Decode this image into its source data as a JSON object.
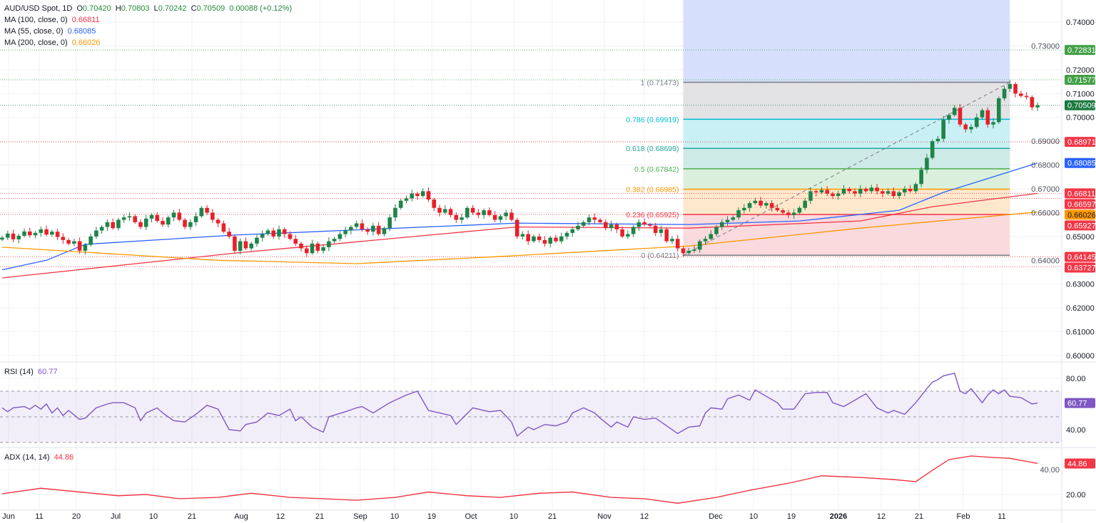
{
  "header": {
    "symbol": "AUD/USD Spot, 1D",
    "o_label": "O",
    "open": "0.70420",
    "h_label": "H",
    "high": "0.70803",
    "l_label": "L",
    "low": "0.70242",
    "c_label": "C",
    "close": "0.70509",
    "change": "0.00088 (+0.12%)"
  },
  "indicators": [
    {
      "label": "MA (100, close, 0)",
      "value": "0.66811",
      "color": "#f23645"
    },
    {
      "label": "MA (55, close, 0)",
      "value": "0.68085",
      "color": "#2962ff"
    },
    {
      "label": "MA (200, close, 0)",
      "value": "0.66026",
      "color": "#ff9800"
    }
  ],
  "rsi": {
    "label": "RSI (14)",
    "value": "60.77",
    "color": "#7e57c2",
    "axis": [
      "80.00",
      "40.00"
    ]
  },
  "adx": {
    "label": "ADX (14, 14)",
    "value": "44.86",
    "color": "#f23645",
    "axis": [
      "40.00",
      "20.00"
    ]
  },
  "colors": {
    "up": "#1e8449",
    "down": "#e8202a",
    "selection": "#d6e0fc"
  },
  "chart_data": {
    "type": "candlestick",
    "title": "AUD/USD Spot, 1D",
    "ylim": [
      0.6,
      0.74
    ],
    "y_ticks": [
      "0.74000",
      "0.73000",
      "0.72000",
      "0.71000",
      "0.70000",
      "0.69000",
      "0.68000",
      "0.67000",
      "0.66000",
      "0.65000",
      "0.64000",
      "0.63000",
      "0.62000",
      "0.61000",
      "0.60000"
    ],
    "x_ticks": [
      "Jun",
      "11",
      "20",
      "Jul",
      "10",
      "21",
      "Aug",
      "12",
      "21",
      "Sep",
      "10",
      "19",
      "Oct",
      "10",
      "21",
      "Nov",
      "12",
      "Dec",
      "10",
      "19",
      "2026",
      "12",
      "21",
      "Feb",
      "11"
    ],
    "closes": [
      0.6495,
      0.6512,
      0.6488,
      0.6503,
      0.6521,
      0.6505,
      0.6515,
      0.653,
      0.6508,
      0.652,
      0.6498,
      0.6485,
      0.647,
      0.648,
      0.644,
      0.6465,
      0.65,
      0.6525,
      0.654,
      0.656,
      0.6535,
      0.657,
      0.658,
      0.6585,
      0.656,
      0.654,
      0.6575,
      0.659,
      0.6565,
      0.655,
      0.658,
      0.66,
      0.657,
      0.654,
      0.656,
      0.6585,
      0.662,
      0.66,
      0.657,
      0.6555,
      0.652,
      0.65,
      0.644,
      0.648,
      0.645,
      0.647,
      0.6495,
      0.651,
      0.6525,
      0.65,
      0.653,
      0.651,
      0.649,
      0.647,
      0.645,
      0.643,
      0.647,
      0.644,
      0.6455,
      0.648,
      0.649,
      0.651,
      0.6525,
      0.654,
      0.6555,
      0.653,
      0.652,
      0.6545,
      0.651,
      0.6535,
      0.658,
      0.662,
      0.665,
      0.666,
      0.668,
      0.667,
      0.669,
      0.6655,
      0.662,
      0.66,
      0.6615,
      0.659,
      0.657,
      0.658,
      0.662,
      0.66,
      0.659,
      0.661,
      0.659,
      0.657,
      0.6585,
      0.66,
      0.657,
      0.65,
      0.651,
      0.648,
      0.65,
      0.6485,
      0.647,
      0.6495,
      0.648,
      0.65,
      0.6515,
      0.653,
      0.6545,
      0.656,
      0.658,
      0.657,
      0.656,
      0.6535,
      0.655,
      0.653,
      0.65,
      0.651,
      0.654,
      0.656,
      0.655,
      0.6545,
      0.6515,
      0.653,
      0.648,
      0.649,
      0.645,
      0.643,
      0.644,
      0.6445,
      0.648,
      0.649,
      0.651,
      0.654,
      0.656,
      0.657,
      0.658,
      0.661,
      0.662,
      0.664,
      0.665,
      0.663,
      0.664,
      0.662,
      0.661,
      0.66,
      0.659,
      0.66,
      0.662,
      0.665,
      0.669,
      0.6685,
      0.6695,
      0.668,
      0.667,
      0.668,
      0.67,
      0.669,
      0.668,
      0.67,
      0.669,
      0.6705,
      0.669,
      0.668,
      0.669,
      0.667,
      0.6685,
      0.67,
      0.669,
      0.672,
      0.678,
      0.683,
      0.69,
      0.691,
      0.699,
      0.701,
      0.704,
      0.697,
      0.695,
      0.696,
      0.7,
      0.703,
      0.697,
      0.698,
      0.708,
      0.712,
      0.714,
      0.71,
      0.709,
      0.7085,
      0.7042,
      0.7051
    ],
    "moving_averages": [
      {
        "name": "MA (100, close, 0)",
        "color": "#f23645",
        "points": [
          [
            0,
            0.6326
          ],
          [
            42,
            0.643
          ],
          [
            93,
            0.654
          ],
          [
            124,
            0.6535
          ],
          [
            155,
            0.6565
          ],
          [
            168,
            0.6625
          ],
          [
            187,
            0.6681
          ]
        ]
      },
      {
        "name": "MA (55, close, 0)",
        "color": "#2962ff",
        "points": [
          [
            0,
            0.636
          ],
          [
            8,
            0.64
          ],
          [
            15,
            0.6467
          ],
          [
            42,
            0.6506
          ],
          [
            93,
            0.6556
          ],
          [
            124,
            0.655
          ],
          [
            144,
            0.6565
          ],
          [
            162,
            0.661
          ],
          [
            170,
            0.6685
          ],
          [
            187,
            0.68085
          ]
        ]
      },
      {
        "name": "MA (200, close, 0)",
        "color": "#ff9800",
        "points": [
          [
            0,
            0.6455
          ],
          [
            39,
            0.64
          ],
          [
            64,
            0.6386
          ],
          [
            90,
            0.6416
          ],
          [
            124,
            0.646
          ],
          [
            155,
            0.6535
          ],
          [
            187,
            0.66026
          ]
        ]
      }
    ],
    "price_lines": [
      {
        "value": "0.72831",
        "color": "#43a047"
      },
      {
        "value": "0.71577",
        "color": "#43a047"
      },
      {
        "value": "0.70509",
        "color": "#1b7a40"
      },
      {
        "value": "0.68971",
        "color": "#f23645"
      },
      {
        "value": "0.68085",
        "color": "#2962ff",
        "noline": true
      },
      {
        "value": "0.66811",
        "color": "#f23645"
      },
      {
        "value": "0.66597",
        "color": "#f23645"
      },
      {
        "value": "0.66026",
        "color": "#ff9800",
        "noline": true
      },
      {
        "value": "0.65927",
        "color": "#f23645"
      },
      {
        "value": "0.64145",
        "color": "#f23645"
      },
      {
        "value": "0.63727",
        "color": "#f23645"
      }
    ],
    "fibonacci": {
      "start_bar": 123,
      "end_bar": 182,
      "levels": [
        {
          "label": "1 (0.71473)",
          "price": 0.71473,
          "color": "#787b86",
          "fill": "#e3e3e6"
        },
        {
          "label": "0.786 (0.69919)",
          "price": 0.69919,
          "color": "#00bcd4",
          "fill": "#c9f0f5"
        },
        {
          "label": "0.618 (0.68699)",
          "price": 0.68699,
          "color": "#26a69a",
          "fill": "#cdeae6"
        },
        {
          "label": "0.5 (0.67842)",
          "price": 0.67842,
          "color": "#4caf50",
          "fill": "#dbf0dc"
        },
        {
          "label": "0.382 (0.66985)",
          "price": 0.66985,
          "color": "#ff9800",
          "fill": "#fde8cc"
        },
        {
          "label": "0.236 (0.65925)",
          "price": 0.65925,
          "color": "#f23645",
          "fill": "#fadadd"
        },
        {
          "label": "0 (0.64211)",
          "price": 0.64211,
          "color": "#787b86",
          "fill": null
        }
      ]
    },
    "rsi_points": [
      [
        0,
        57
      ],
      [
        1,
        54
      ],
      [
        2,
        57
      ],
      [
        4,
        58
      ],
      [
        5,
        56
      ],
      [
        6,
        59
      ],
      [
        7,
        56
      ],
      [
        8,
        60
      ],
      [
        9,
        53
      ],
      [
        10,
        57
      ],
      [
        11,
        51
      ],
      [
        12,
        55
      ],
      [
        14,
        48
      ],
      [
        15,
        49
      ],
      [
        17,
        57
      ],
      [
        19,
        60
      ],
      [
        20,
        61
      ],
      [
        22,
        61
      ],
      [
        24,
        57
      ],
      [
        25,
        47
      ],
      [
        26,
        53
      ],
      [
        28,
        57
      ],
      [
        29,
        53
      ],
      [
        31,
        47
      ],
      [
        33,
        46
      ],
      [
        35,
        52
      ],
      [
        37,
        59
      ],
      [
        39,
        56
      ],
      [
        41,
        40
      ],
      [
        43,
        39
      ],
      [
        44,
        44
      ],
      [
        46,
        46
      ],
      [
        48,
        53
      ],
      [
        50,
        51
      ],
      [
        52,
        56
      ],
      [
        53,
        47
      ],
      [
        54,
        50
      ],
      [
        56,
        42
      ],
      [
        58,
        38
      ],
      [
        59,
        50
      ],
      [
        62,
        54
      ],
      [
        64,
        57
      ],
      [
        65,
        58
      ],
      [
        67,
        53
      ],
      [
        70,
        61
      ],
      [
        72,
        65
      ],
      [
        73,
        67
      ],
      [
        75,
        70
      ],
      [
        77,
        55
      ],
      [
        79,
        53
      ],
      [
        81,
        51
      ],
      [
        82,
        44
      ],
      [
        85,
        57
      ],
      [
        88,
        54
      ],
      [
        90,
        55
      ],
      [
        92,
        46
      ],
      [
        93,
        35
      ],
      [
        95,
        42
      ],
      [
        96,
        40
      ],
      [
        98,
        44
      ],
      [
        100,
        43
      ],
      [
        102,
        46
      ],
      [
        103,
        53
      ],
      [
        105,
        57
      ],
      [
        107,
        53
      ],
      [
        108,
        49
      ],
      [
        110,
        42
      ],
      [
        111,
        46
      ],
      [
        113,
        42
      ],
      [
        114,
        50
      ],
      [
        116,
        48
      ],
      [
        118,
        49
      ],
      [
        120,
        43
      ],
      [
        122,
        37
      ],
      [
        124,
        42
      ],
      [
        126,
        43
      ],
      [
        127,
        53
      ],
      [
        128,
        57
      ],
      [
        130,
        56
      ],
      [
        131,
        64
      ],
      [
        133,
        67
      ],
      [
        135,
        63
      ],
      [
        136,
        71
      ],
      [
        138,
        66
      ],
      [
        140,
        61
      ],
      [
        141,
        56
      ],
      [
        143,
        56
      ],
      [
        145,
        68
      ],
      [
        147,
        69
      ],
      [
        149,
        69
      ],
      [
        150,
        61
      ],
      [
        152,
        58
      ],
      [
        154,
        63
      ],
      [
        156,
        68
      ],
      [
        158,
        57
      ],
      [
        160,
        53
      ],
      [
        161,
        55
      ],
      [
        163,
        52
      ],
      [
        165,
        61
      ],
      [
        167,
        72
      ],
      [
        168,
        77
      ],
      [
        169,
        79
      ],
      [
        170,
        82
      ],
      [
        172,
        84
      ],
      [
        173,
        70
      ],
      [
        174,
        68
      ],
      [
        175,
        72
      ],
      [
        177,
        61
      ],
      [
        178,
        67
      ],
      [
        179,
        71
      ],
      [
        180,
        68
      ],
      [
        181,
        71
      ],
      [
        182,
        66
      ],
      [
        184,
        65
      ],
      [
        186,
        60
      ],
      [
        187,
        60.77
      ]
    ],
    "rsi_bands": [
      70,
      50,
      30
    ],
    "adx_points": [
      [
        0,
        20.6
      ],
      [
        7,
        25
      ],
      [
        14,
        22
      ],
      [
        21,
        19
      ],
      [
        26,
        20
      ],
      [
        32,
        16.6
      ],
      [
        39,
        17.7
      ],
      [
        45,
        21
      ],
      [
        52,
        17.7
      ],
      [
        58,
        16.6
      ],
      [
        64,
        15.4
      ],
      [
        71,
        17.7
      ],
      [
        77,
        22
      ],
      [
        84,
        19
      ],
      [
        90,
        17.7
      ],
      [
        97,
        21
      ],
      [
        103,
        22
      ],
      [
        110,
        17.7
      ],
      [
        116,
        16.6
      ],
      [
        122,
        13
      ],
      [
        129,
        17.7
      ],
      [
        135,
        23.4
      ],
      [
        142,
        29
      ],
      [
        148,
        35
      ],
      [
        155,
        33.7
      ],
      [
        161,
        32
      ],
      [
        165,
        30.3
      ],
      [
        168,
        39.4
      ],
      [
        171,
        48
      ],
      [
        175,
        50.9
      ],
      [
        179,
        49.7
      ],
      [
        182,
        49
      ],
      [
        184,
        47.4
      ],
      [
        187,
        44.86
      ]
    ]
  }
}
